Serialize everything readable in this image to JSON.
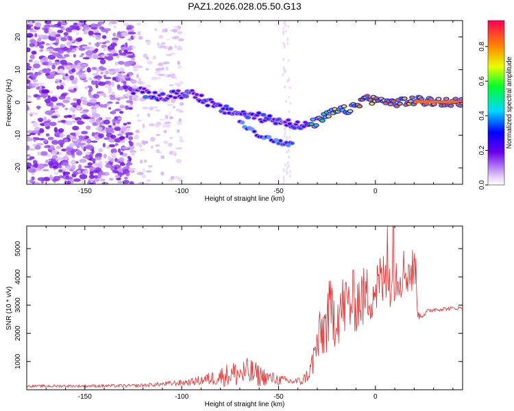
{
  "chart_data": [
    {
      "type": "heatmap",
      "title": "PAZ1.2026.028.05.50.G13",
      "xlabel": "Height of straight line (km)",
      "ylabel": "Frequency (Hz)",
      "xlim": [
        -180,
        45
      ],
      "ylim": [
        -25,
        25
      ],
      "xticks": [
        -150,
        -100,
        -50,
        0
      ],
      "yticks": [
        -20,
        -10,
        0,
        10,
        20
      ],
      "colorbar": {
        "label": "Normalized spectral amplitude",
        "range": [
          0,
          0.95
        ],
        "ticks": [
          0.0,
          0.2,
          0.4,
          0.6,
          0.8
        ],
        "tick_labels": [
          "0.0",
          "0.2",
          "0.4",
          "0.6",
          "0.8"
        ]
      },
      "ridge": {
        "description_points": [
          {
            "x": -125,
            "y": 4
          },
          {
            "x": -112,
            "y": 1.5
          },
          {
            "x": -95,
            "y": 3
          },
          {
            "x": -80,
            "y": -2
          },
          {
            "x": -65,
            "y": -4
          },
          {
            "x": -55,
            "y": -5
          },
          {
            "x": -45,
            "y": -6
          },
          {
            "x": -38,
            "y": -7.5
          },
          {
            "x": -30,
            "y": -6
          },
          {
            "x": -22,
            "y": -3
          },
          {
            "x": -12,
            "y": -2
          },
          {
            "x": -5,
            "y": 1.5
          },
          {
            "x": 0,
            "y": 0.5
          },
          {
            "x": 10,
            "y": 0
          },
          {
            "x": 20,
            "y": 0.5
          },
          {
            "x": 45,
            "y": 0
          }
        ],
        "branch_points": [
          {
            "x": -70,
            "y": -6
          },
          {
            "x": -60,
            "y": -10
          },
          {
            "x": -50,
            "y": -12
          },
          {
            "x": -42,
            "y": -13
          }
        ]
      }
    },
    {
      "type": "line",
      "xlabel": "Height of straight line (km)",
      "ylabel": "SNR (10 * v/v)",
      "xlim": [
        -180,
        45
      ],
      "ylim": [
        0,
        5800
      ],
      "xticks": [
        -150,
        -100,
        -50,
        0
      ],
      "yticks": [
        1000,
        2000,
        3000,
        4000,
        5000
      ],
      "color": "#ee2222",
      "envelope": [
        {
          "x": -180,
          "mean": 130,
          "amp": 40
        },
        {
          "x": -125,
          "mean": 140,
          "amp": 60
        },
        {
          "x": -110,
          "mean": 200,
          "amp": 80
        },
        {
          "x": -95,
          "mean": 280,
          "amp": 120
        },
        {
          "x": -85,
          "mean": 400,
          "amp": 250
        },
        {
          "x": -75,
          "mean": 550,
          "amp": 450
        },
        {
          "x": -65,
          "mean": 600,
          "amp": 550
        },
        {
          "x": -55,
          "mean": 420,
          "amp": 250
        },
        {
          "x": -45,
          "mean": 300,
          "amp": 150
        },
        {
          "x": -38,
          "mean": 300,
          "amp": 150
        },
        {
          "x": -34,
          "mean": 600,
          "amp": 300
        },
        {
          "x": -30,
          "mean": 1600,
          "amp": 900
        },
        {
          "x": -24,
          "mean": 2600,
          "amp": 1300
        },
        {
          "x": -15,
          "mean": 3000,
          "amp": 1200
        },
        {
          "x": -5,
          "mean": 3300,
          "amp": 1100
        },
        {
          "x": 5,
          "mean": 3900,
          "amp": 1100
        },
        {
          "x": 15,
          "mean": 4200,
          "amp": 900
        },
        {
          "x": 21,
          "mean": 4200,
          "amp": 900
        },
        {
          "x": 22,
          "mean": 2600,
          "amp": 150
        },
        {
          "x": 30,
          "mean": 2850,
          "amp": 80
        },
        {
          "x": 45,
          "mean": 2900,
          "amp": 60
        }
      ]
    }
  ]
}
